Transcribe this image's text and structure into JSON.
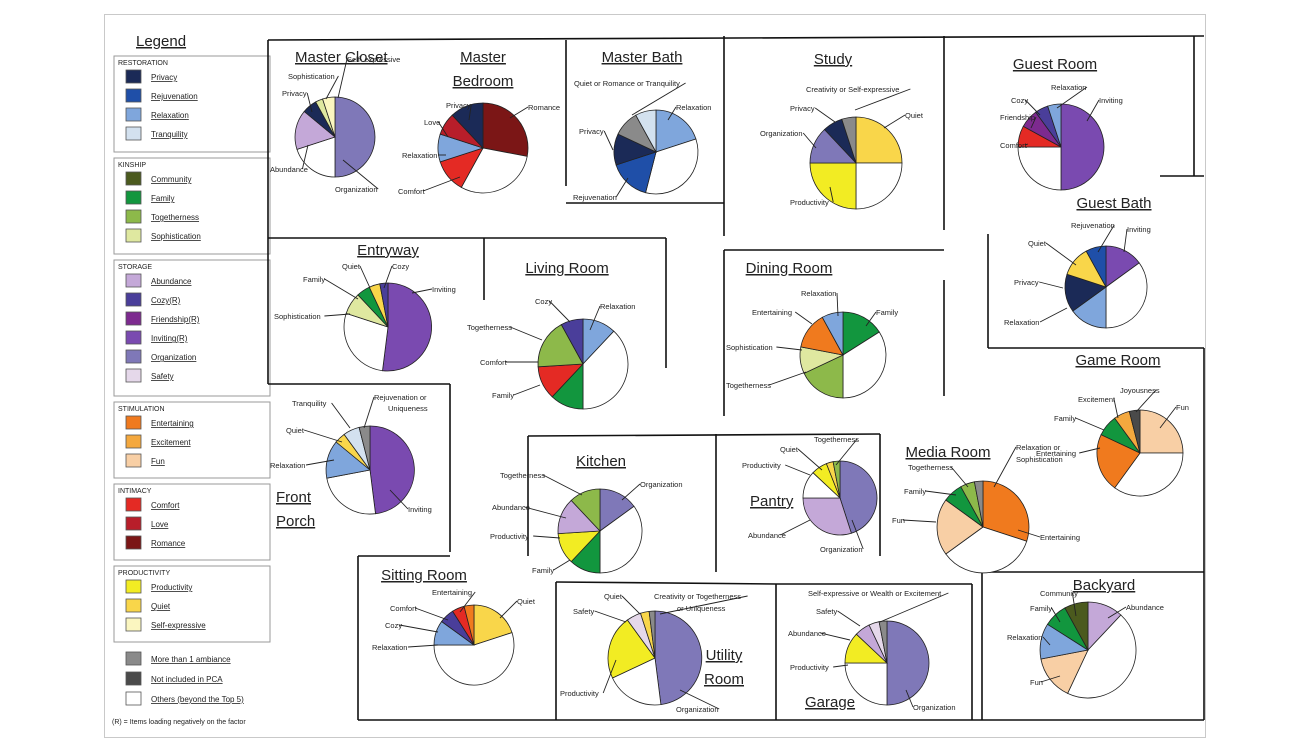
{
  "legend": {
    "title": "Legend",
    "groups": [
      {
        "name": "RESTORATION",
        "items": [
          {
            "label": "Privacy",
            "color": "#1b2a57"
          },
          {
            "label": "Rejuvenation",
            "color": "#1f4fa8"
          },
          {
            "label": "Relaxation",
            "color": "#7fa6dc"
          },
          {
            "label": "Tranquility",
            "color": "#d3e1ef"
          }
        ]
      },
      {
        "name": "KINSHIP",
        "items": [
          {
            "label": "Community",
            "color": "#4b5a1e"
          },
          {
            "label": "Family",
            "color": "#12963e"
          },
          {
            "label": "Togetherness",
            "color": "#8db94a"
          },
          {
            "label": "Sophistication",
            "color": "#dfe8a0"
          }
        ]
      },
      {
        "name": "STORAGE",
        "items": [
          {
            "label": "Abundance",
            "color": "#c4a8d8"
          },
          {
            "label": "Cozy(R)",
            "color": "#4a3e9a"
          },
          {
            "label": "Friendship(R)",
            "color": "#7d2a8f"
          },
          {
            "label": "Inviting(R)",
            "color": "#7a4ab0"
          },
          {
            "label": "Organization",
            "color": "#7f78b8"
          },
          {
            "label": "Safety",
            "color": "#e5d8ea"
          }
        ]
      },
      {
        "name": "STIMULATION",
        "items": [
          {
            "label": "Entertaining",
            "color": "#f07a1e"
          },
          {
            "label": "Excitement",
            "color": "#f4a83e"
          },
          {
            "label": "Fun",
            "color": "#f8cfa5"
          }
        ]
      },
      {
        "name": "INTIMACY",
        "items": [
          {
            "label": "Comfort",
            "color": "#e42a24"
          },
          {
            "label": "Love",
            "color": "#b81e2a"
          },
          {
            "label": "Romance",
            "color": "#7b1616"
          }
        ]
      },
      {
        "name": "PRODUCTIVITY",
        "items": [
          {
            "label": "Productivity",
            "color": "#f2ec23"
          },
          {
            "label": "Quiet",
            "color": "#f9d64a"
          },
          {
            "label": "Self-expressive",
            "color": "#fbf6c0"
          }
        ]
      }
    ],
    "extra": [
      {
        "label": "More than 1 ambiance",
        "color": "#8a8a8a"
      },
      {
        "label": "Not included in PCA",
        "color": "#4a4a4a"
      },
      {
        "label": "Others (beyond the Top 5)",
        "color": "#ffffff"
      }
    ],
    "note": "(R) = Items loading negatively on the factor"
  },
  "chart_data": [
    {
      "type": "pie",
      "room": "Master Closet",
      "title": "Master Closet",
      "slices": [
        {
          "label": "Organization",
          "value": 50
        },
        {
          "label": "Others",
          "value": 20
        },
        {
          "label": "Abundance",
          "value": 16
        },
        {
          "label": "Privacy",
          "value": 6
        },
        {
          "label": "Sophistication",
          "value": 3
        },
        {
          "label": "Self- expressive",
          "value": 5
        }
      ]
    },
    {
      "type": "pie",
      "room": "Master Bedroom",
      "title": "Master Bedroom",
      "slices": [
        {
          "label": "Romance",
          "value": 28
        },
        {
          "label": "Others",
          "value": 30
        },
        {
          "label": "Comfort",
          "value": 12
        },
        {
          "label": "Relaxation",
          "value": 10
        },
        {
          "label": "Love",
          "value": 8
        },
        {
          "label": "Privacy",
          "value": 12
        }
      ]
    },
    {
      "type": "pie",
      "room": "Master Bath",
      "title": "Master Bath",
      "slices": [
        {
          "label": "Relaxation",
          "value": 20
        },
        {
          "label": "Others",
          "value": 34
        },
        {
          "label": "Rejuvenation",
          "value": 16
        },
        {
          "label": "Privacy",
          "value": 12
        },
        {
          "label": "More than 1 ambiance",
          "value": 10
        },
        {
          "label": "Tranquility",
          "value": 8
        }
      ],
      "annotation": "Quiet or Romance or Tranquility"
    },
    {
      "type": "pie",
      "room": "Study",
      "title": "Study",
      "slices": [
        {
          "label": "Quiet",
          "value": 25
        },
        {
          "label": "Others",
          "value": 25
        },
        {
          "label": "Productivity",
          "value": 25
        },
        {
          "label": "Organization",
          "value": 13
        },
        {
          "label": "Privacy",
          "value": 7
        },
        {
          "label": "More than 1 ambiance",
          "value": 5
        }
      ],
      "annotation": "Creativity or Self-expressive"
    },
    {
      "type": "pie",
      "room": "Guest Room",
      "title": "Guest Room",
      "slices": [
        {
          "label": "Inviting",
          "value": 50
        },
        {
          "label": "Others",
          "value": 25
        },
        {
          "label": "Comfort",
          "value": 8
        },
        {
          "label": "Friendship",
          "value": 7
        },
        {
          "label": "Cozy",
          "value": 5
        },
        {
          "label": "Relaxation",
          "value": 5
        }
      ]
    },
    {
      "type": "pie",
      "room": "Guest Bath",
      "title": "Guest Bath",
      "slices": [
        {
          "label": "Inviting",
          "value": 15
        },
        {
          "label": "Others",
          "value": 35
        },
        {
          "label": "Relaxation",
          "value": 15
        },
        {
          "label": "Privacy",
          "value": 15
        },
        {
          "label": "Quiet",
          "value": 12
        },
        {
          "label": "Rejuvenation",
          "value": 8
        }
      ]
    },
    {
      "type": "pie",
      "room": "Entryway",
      "title": "Entryway",
      "slices": [
        {
          "label": "Inviting",
          "value": 52
        },
        {
          "label": "Others",
          "value": 28
        },
        {
          "label": "Sophistication",
          "value": 8
        },
        {
          "label": "Family",
          "value": 5
        },
        {
          "label": "Quiet",
          "value": 4
        },
        {
          "label": "Cozy",
          "value": 3
        }
      ]
    },
    {
      "type": "pie",
      "room": "Living Room",
      "title": "Living Room",
      "slices": [
        {
          "label": "Relaxation",
          "value": 12
        },
        {
          "label": "Others",
          "value": 38
        },
        {
          "label": "Family",
          "value": 12
        },
        {
          "label": "Comfort",
          "value": 12
        },
        {
          "label": "Togetherness",
          "value": 18
        },
        {
          "label": "Cozy",
          "value": 8
        }
      ]
    },
    {
      "type": "pie",
      "room": "Dining Room",
      "title": "Dining Room",
      "slices": [
        {
          "label": "Family",
          "value": 16
        },
        {
          "label": "Others",
          "value": 34
        },
        {
          "label": "Togetherness",
          "value": 18
        },
        {
          "label": "Sophistication",
          "value": 10
        },
        {
          "label": "Entertaining",
          "value": 14
        },
        {
          "label": "Relaxation",
          "value": 8
        }
      ]
    },
    {
      "type": "pie",
      "room": "Game Room",
      "title": "Game Room",
      "slices": [
        {
          "label": "Fun",
          "value": 25
        },
        {
          "label": "Others",
          "value": 35
        },
        {
          "label": "Entertaining",
          "value": 22
        },
        {
          "label": "Family",
          "value": 8
        },
        {
          "label": "Excitement",
          "value": 6
        },
        {
          "label": "Joyousness",
          "value": 4
        }
      ]
    },
    {
      "type": "pie",
      "room": "Front Porch",
      "title": "Front Porch",
      "slices": [
        {
          "label": "Inviting",
          "value": 48
        },
        {
          "label": "Others",
          "value": 24
        },
        {
          "label": "Relaxation",
          "value": 14
        },
        {
          "label": "Quiet",
          "value": 4
        },
        {
          "label": "Tranquility",
          "value": 6
        },
        {
          "label": "Rejuvenation or Uniqueness",
          "value": 4
        }
      ]
    },
    {
      "type": "pie",
      "room": "Kitchen",
      "title": "Kitchen",
      "slices": [
        {
          "label": "Organization",
          "value": 15
        },
        {
          "label": "Others",
          "value": 35
        },
        {
          "label": "Family",
          "value": 12
        },
        {
          "label": "Productivity",
          "value": 12
        },
        {
          "label": "Abundance",
          "value": 14
        },
        {
          "label": "Togetherness",
          "value": 12
        }
      ]
    },
    {
      "type": "pie",
      "room": "Pantry",
      "title": "Pantry",
      "slices": [
        {
          "label": "Organization",
          "value": 45
        },
        {
          "label": "Abundance",
          "value": 30
        },
        {
          "label": "Others",
          "value": 12
        },
        {
          "label": "Productivity",
          "value": 7
        },
        {
          "label": "Quiet",
          "value": 3
        },
        {
          "label": "Togetherness",
          "value": 3
        }
      ]
    },
    {
      "type": "pie",
      "room": "Media Room",
      "title": "Media Room",
      "slices": [
        {
          "label": "Entertaining",
          "value": 30
        },
        {
          "label": "Others",
          "value": 35
        },
        {
          "label": "Fun",
          "value": 20
        },
        {
          "label": "Family",
          "value": 7
        },
        {
          "label": "Togetherness",
          "value": 5
        },
        {
          "label": "Relaxation or Sophistication",
          "value": 3
        }
      ]
    },
    {
      "type": "pie",
      "room": "Sitting Room",
      "title": "Sitting Room",
      "slices": [
        {
          "label": "Quiet",
          "value": 20
        },
        {
          "label": "Others",
          "value": 55
        },
        {
          "label": "Relaxation",
          "value": 10
        },
        {
          "label": "Cozy",
          "value": 6
        },
        {
          "label": "Comfort",
          "value": 5
        },
        {
          "label": "Entertaining",
          "value": 4
        }
      ]
    },
    {
      "type": "pie",
      "room": "Utility Room",
      "title": "Utility Room",
      "slices": [
        {
          "label": "Organization",
          "value": 48
        },
        {
          "label": "Others",
          "value": 20
        },
        {
          "label": "Productivity",
          "value": 22
        },
        {
          "label": "Safety",
          "value": 5
        },
        {
          "label": "Quiet",
          "value": 3
        },
        {
          "label": "Creativity or Togetherness or Uniqueness",
          "value": 2
        }
      ]
    },
    {
      "type": "pie",
      "room": "Garage",
      "title": "Garage",
      "slices": [
        {
          "label": "Organization",
          "value": 50
        },
        {
          "label": "Others",
          "value": 25
        },
        {
          "label": "Productivity",
          "value": 12
        },
        {
          "label": "Abundance",
          "value": 6
        },
        {
          "label": "Safety",
          "value": 4
        },
        {
          "label": "Self-expressive or Wealth or Excitement",
          "value": 3
        }
      ]
    },
    {
      "type": "pie",
      "room": "Backyard",
      "title": "Backyard",
      "slices": [
        {
          "label": "Abundance",
          "value": 12
        },
        {
          "label": "Others",
          "value": 45
        },
        {
          "label": "Fun",
          "value": 15
        },
        {
          "label": "Relaxation",
          "value": 12
        },
        {
          "label": "Family",
          "value": 8
        },
        {
          "label": "Community",
          "value": 8
        }
      ]
    }
  ]
}
